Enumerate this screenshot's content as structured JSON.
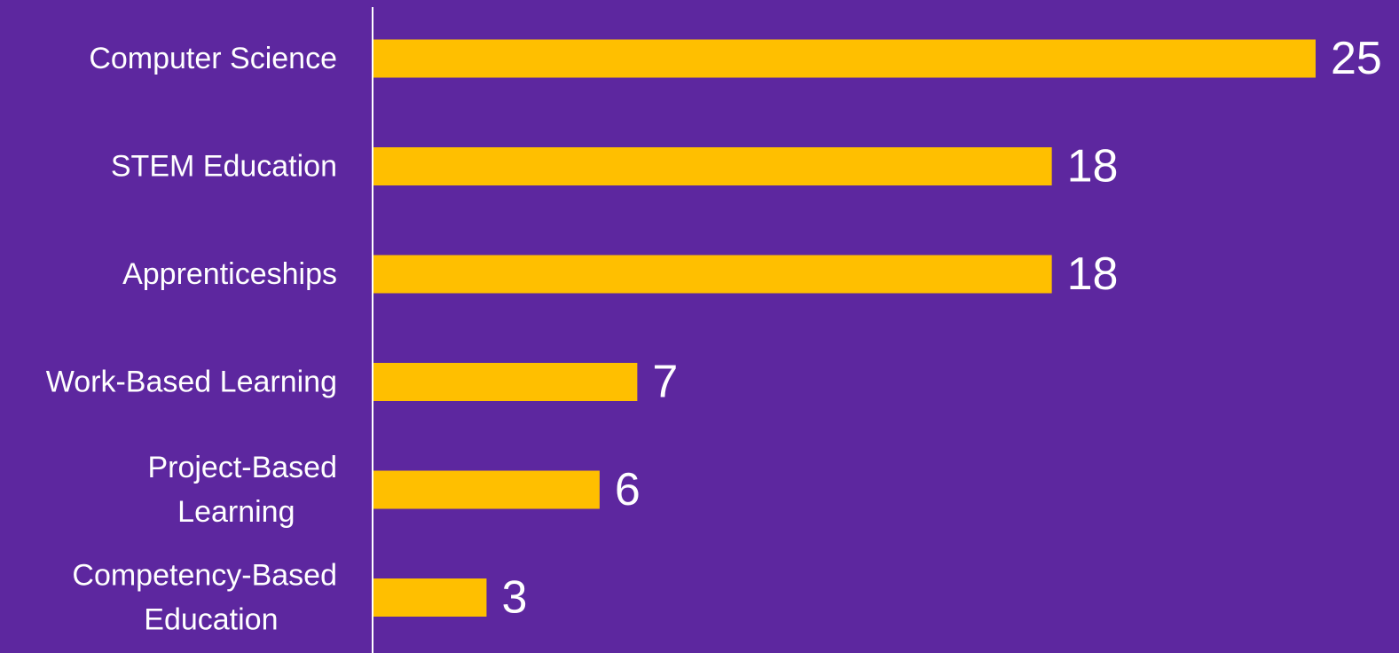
{
  "chart_data": {
    "type": "bar",
    "orientation": "horizontal",
    "categories": [
      "Computer Science",
      "STEM Education",
      "Apprenticeships",
      "Work-Based Learning",
      "Project-Based Learning",
      "Competency-Based Education"
    ],
    "category_lines": [
      [
        "Computer Science"
      ],
      [
        "STEM Education"
      ],
      [
        "Apprenticeships"
      ],
      [
        "Work-Based Learning"
      ],
      [
        "Project-Based",
        "Learning"
      ],
      [
        "Competency-Based",
        "Education"
      ]
    ],
    "values": [
      25,
      18,
      18,
      7,
      6,
      3
    ],
    "title": "",
    "xlabel": "",
    "ylabel": "",
    "xlim": [
      0,
      25
    ],
    "grid": false,
    "legend": "none",
    "data_labels": true
  },
  "colors": {
    "background": "#5d279f",
    "bar": "#ffbf00",
    "axis": "#ffffff",
    "text": "#ffffff"
  }
}
